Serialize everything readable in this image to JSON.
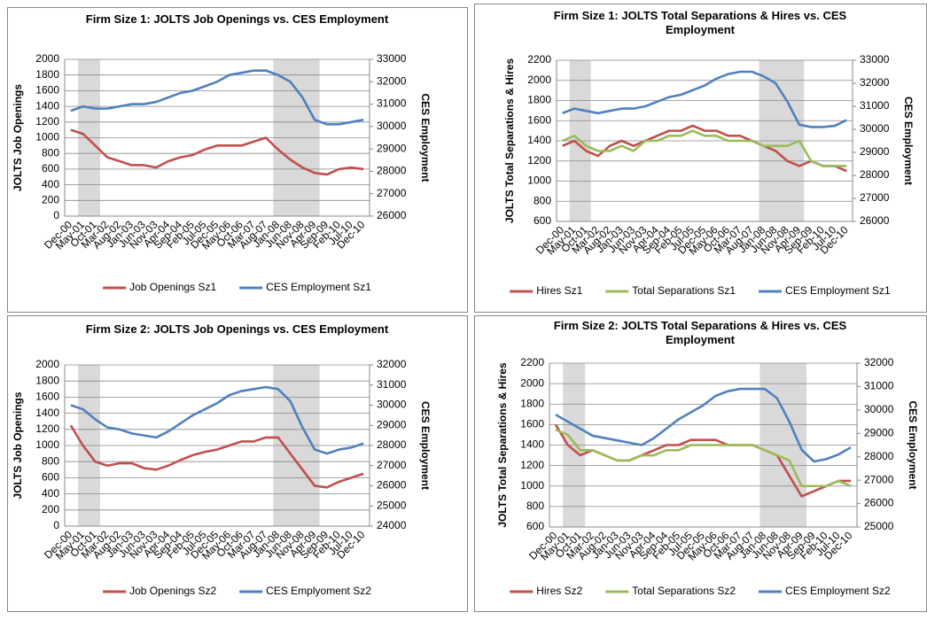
{
  "chart_data": [
    {
      "type": "line",
      "title": "Firm Size 1:  JOLTS Job Openings vs. CES Employment",
      "y_label": "JOLTS Job Openings",
      "y2_label": "CES Employment",
      "categories": [
        "Dec-00",
        "May-01",
        "Oct-01",
        "Mar-02",
        "Aug-02",
        "Jan-03",
        "Jun-03",
        "Nov-03",
        "Apr-04",
        "Sep-04",
        "Feb-05",
        "Jul-05",
        "Dec-05",
        "May-06",
        "Oct-06",
        "Mar-07",
        "Aug-07",
        "Jan-08",
        "Jun-08",
        "Nov-08",
        "Apr-09",
        "Sep-09",
        "Feb-10",
        "Jul-10",
        "Dec-10"
      ],
      "shaded": [
        [
          "May-01",
          "Oct-01"
        ],
        [
          "Jan-08",
          "Apr-09"
        ]
      ],
      "series": [
        {
          "name": "Job Openings Sz1",
          "color": "#c0504d",
          "values": [
            1100,
            1050,
            900,
            750,
            700,
            650,
            650,
            620,
            700,
            750,
            780,
            850,
            900,
            900,
            900,
            950,
            1000,
            850,
            720,
            620,
            550,
            530,
            600,
            620,
            600
          ]
        },
        {
          "name": "CES Employment  Sz1",
          "color": "#4f81bd",
          "axis": "y2",
          "values": [
            30700,
            30900,
            30800,
            30800,
            30900,
            31000,
            31000,
            31100,
            31300,
            31500,
            31600,
            31800,
            32000,
            32300,
            32400,
            32500,
            32500,
            32300,
            32000,
            31300,
            30300,
            30100,
            30100,
            30200,
            30300
          ]
        }
      ],
      "ylim": [
        0,
        2000
      ],
      "yticks": [
        0,
        200,
        400,
        600,
        800,
        1000,
        1200,
        1400,
        1600,
        1800,
        2000
      ],
      "y2lim": [
        26000,
        33000
      ],
      "y2ticks": [
        26000,
        27000,
        28000,
        29000,
        30000,
        31000,
        32000,
        33000
      ],
      "legend": "bottom"
    },
    {
      "type": "line",
      "title": "Firm Size 1: JOLTS Total Separations & Hires vs. CES Employment",
      "y_label": "JOLTS Total Separations & Hires",
      "y2_label": "CES Employment",
      "categories": [
        "Dec-00",
        "May-01",
        "Oct-01",
        "Mar-02",
        "Aug-02",
        "Jan-03",
        "Jun-03",
        "Nov-03",
        "Apr-04",
        "Sep-04",
        "Feb-05",
        "Jul-05",
        "Dec-05",
        "May-06",
        "Oct-06",
        "Mar-07",
        "Aug-07",
        "Jan-08",
        "Jun-08",
        "Nov-08",
        "Apr-09",
        "Sep-09",
        "Feb-10",
        "Jul-10",
        "Dec-10"
      ],
      "shaded": [
        [
          "May-01",
          "Oct-01"
        ],
        [
          "Jan-08",
          "Apr-09"
        ]
      ],
      "series": [
        {
          "name": "Hires Sz1",
          "color": "#c0504d",
          "values": [
            1350,
            1400,
            1300,
            1250,
            1350,
            1400,
            1350,
            1400,
            1450,
            1500,
            1500,
            1550,
            1500,
            1500,
            1450,
            1450,
            1400,
            1350,
            1300,
            1200,
            1150,
            1200,
            1150,
            1150,
            1100
          ]
        },
        {
          "name": "Total Separations Sz1",
          "color": "#9bbb59",
          "values": [
            1400,
            1450,
            1350,
            1300,
            1300,
            1350,
            1300,
            1400,
            1400,
            1450,
            1450,
            1500,
            1450,
            1450,
            1400,
            1400,
            1400,
            1350,
            1350,
            1350,
            1400,
            1200,
            1150,
            1150,
            1150
          ]
        },
        {
          "name": "CES Employment  Sz1",
          "color": "#4f81bd",
          "axis": "y2",
          "values": [
            30700,
            30900,
            30800,
            30700,
            30800,
            30900,
            30900,
            31000,
            31200,
            31400,
            31500,
            31700,
            31900,
            32200,
            32400,
            32500,
            32500,
            32300,
            32000,
            31200,
            30200,
            30100,
            30100,
            30150,
            30400
          ]
        }
      ],
      "ylim": [
        600,
        2200
      ],
      "yticks": [
        600,
        800,
        1000,
        1200,
        1400,
        1600,
        1800,
        2000,
        2200
      ],
      "y2lim": [
        26000,
        33000
      ],
      "y2ticks": [
        26000,
        27000,
        28000,
        29000,
        30000,
        31000,
        32000,
        33000
      ],
      "legend": "bottom"
    },
    {
      "type": "line",
      "title": "Firm Size 2:  JOLTS Job Openings vs. CES Employment",
      "y_label": "JOLTS Job Openings",
      "y2_label": "CES Employment",
      "categories": [
        "Dec-00",
        "May-01",
        "Oct-01",
        "Mar-02",
        "Aug-02",
        "Jan-03",
        "Jun-03",
        "Nov-03",
        "Apr-04",
        "Sep-04",
        "Feb-05",
        "Jul-05",
        "Dec-05",
        "May-06",
        "Oct-06",
        "Mar-07",
        "Aug-07",
        "Jan-08",
        "Jun-08",
        "Nov-08",
        "Apr-09",
        "Sep-09",
        "Feb-10",
        "Jul-10",
        "Dec-10"
      ],
      "shaded": [
        [
          "May-01",
          "Oct-01"
        ],
        [
          "Jan-08",
          "Apr-09"
        ]
      ],
      "series": [
        {
          "name": "Job Openings Sz2",
          "color": "#c0504d",
          "values": [
            1250,
            1000,
            800,
            750,
            780,
            780,
            720,
            700,
            750,
            820,
            880,
            920,
            950,
            1000,
            1050,
            1050,
            1100,
            1100,
            900,
            700,
            500,
            480,
            550,
            600,
            650
          ]
        },
        {
          "name": "CES Emplyoment Sz2",
          "color": "#4f81bd",
          "axis": "y2",
          "values": [
            30000,
            29800,
            29300,
            28900,
            28800,
            28600,
            28500,
            28400,
            28700,
            29100,
            29500,
            29800,
            30100,
            30500,
            30700,
            30800,
            30900,
            30800,
            30200,
            28900,
            27800,
            27600,
            27800,
            27900,
            28100
          ]
        }
      ],
      "ylim": [
        0,
        2000
      ],
      "yticks": [
        0,
        200,
        400,
        600,
        800,
        1000,
        1200,
        1400,
        1600,
        1800,
        2000
      ],
      "y2lim": [
        24000,
        32000
      ],
      "y2ticks": [
        24000,
        25000,
        26000,
        27000,
        28000,
        29000,
        30000,
        31000,
        32000
      ],
      "legend": "bottom"
    },
    {
      "type": "line",
      "title": "Firm Size 2: JOLTS Total Separations & Hires vs. CES Employment",
      "y_label": "JOLTS Total Separations & Hires",
      "y2_label": "CES Employment",
      "categories": [
        "Dec-00",
        "May-01",
        "Oct-01",
        "Mar-02",
        "Aug-02",
        "Jan-03",
        "Jun-03",
        "Nov-03",
        "Apr-04",
        "Sep-04",
        "Feb-05",
        "Jul-05",
        "Dec-05",
        "May-06",
        "Oct-06",
        "Mar-07",
        "Aug-07",
        "Jan-08",
        "Jun-08",
        "Nov-08",
        "Apr-09",
        "Sep-09",
        "Feb-10",
        "Jul-10",
        "Dec-10"
      ],
      "shaded": [
        [
          "May-01",
          "Oct-01"
        ],
        [
          "Jan-08",
          "Apr-09"
        ]
      ],
      "series": [
        {
          "name": "Hires Sz2",
          "color": "#c0504d",
          "values": [
            1600,
            1400,
            1300,
            1350,
            1300,
            1250,
            1250,
            1300,
            1350,
            1400,
            1400,
            1450,
            1450,
            1450,
            1400,
            1400,
            1400,
            1350,
            1300,
            1100,
            900,
            950,
            1000,
            1050,
            1050
          ]
        },
        {
          "name": "Total Separations Sz2",
          "color": "#9bbb59",
          "values": [
            1550,
            1500,
            1350,
            1350,
            1300,
            1250,
            1250,
            1300,
            1300,
            1350,
            1350,
            1400,
            1400,
            1400,
            1400,
            1400,
            1400,
            1350,
            1300,
            1250,
            1000,
            1000,
            1000,
            1050,
            1000
          ]
        },
        {
          "name": "CES Employment Sz2",
          "color": "#4f81bd",
          "axis": "y2",
          "values": [
            29800,
            29500,
            29200,
            28900,
            28800,
            28700,
            28600,
            28500,
            28800,
            29200,
            29600,
            29900,
            30200,
            30600,
            30800,
            30900,
            30900,
            30900,
            30500,
            29500,
            28300,
            27800,
            27900,
            28100,
            28400
          ]
        }
      ],
      "ylim": [
        600,
        2200
      ],
      "yticks": [
        600,
        800,
        1000,
        1200,
        1400,
        1600,
        1800,
        2000,
        2200
      ],
      "y2lim": [
        25000,
        32000
      ],
      "y2ticks": [
        25000,
        26000,
        27000,
        28000,
        29000,
        30000,
        31000,
        32000
      ],
      "legend": "bottom"
    }
  ]
}
